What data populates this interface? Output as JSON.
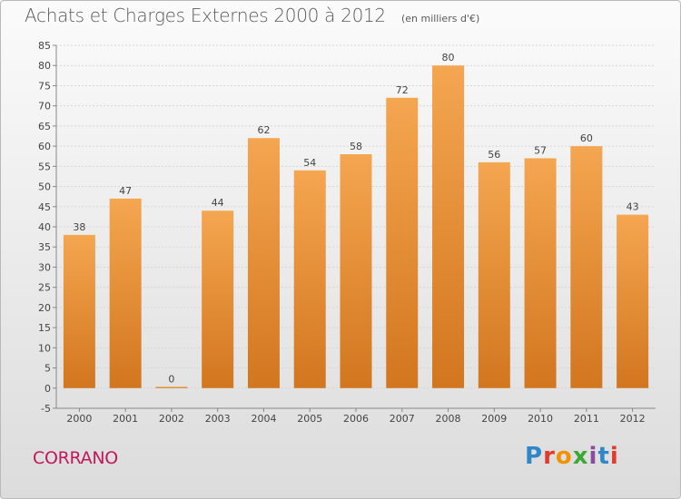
{
  "title": "Achats et Charges Externes 2000 à 2012",
  "subtitle": "(en milliers d'€)",
  "commune": "CORRANO",
  "brand": "Proxiti",
  "colors": {
    "bar_light": "#f5a650",
    "bar_dark": "#d2761f",
    "commune": "#c2185b",
    "brand_letters": [
      "#2f86c9",
      "#e03c2c",
      "#f39200",
      "#3aa935",
      "#8a4c9f",
      "#2f86c9",
      "#e03c2c"
    ]
  },
  "chart_data": {
    "type": "bar",
    "title": "Achats et Charges Externes 2000 à 2012",
    "subtitle": "(en milliers d'€)",
    "xlabel": "",
    "ylabel": "",
    "categories": [
      "2000",
      "2001",
      "2002",
      "2003",
      "2004",
      "2005",
      "2006",
      "2007",
      "2008",
      "2009",
      "2010",
      "2011",
      "2012"
    ],
    "values": [
      38,
      47,
      0,
      44,
      62,
      54,
      58,
      72,
      80,
      56,
      57,
      60,
      43
    ],
    "ylim": [
      -5,
      85
    ],
    "yticks": [
      "-5",
      "0",
      "5",
      "10",
      "15",
      "20",
      "25",
      "30",
      "35",
      "40",
      "45",
      "50",
      "55",
      "60",
      "65",
      "70",
      "75",
      "80",
      "85"
    ],
    "grid": true,
    "data_labels": true
  }
}
